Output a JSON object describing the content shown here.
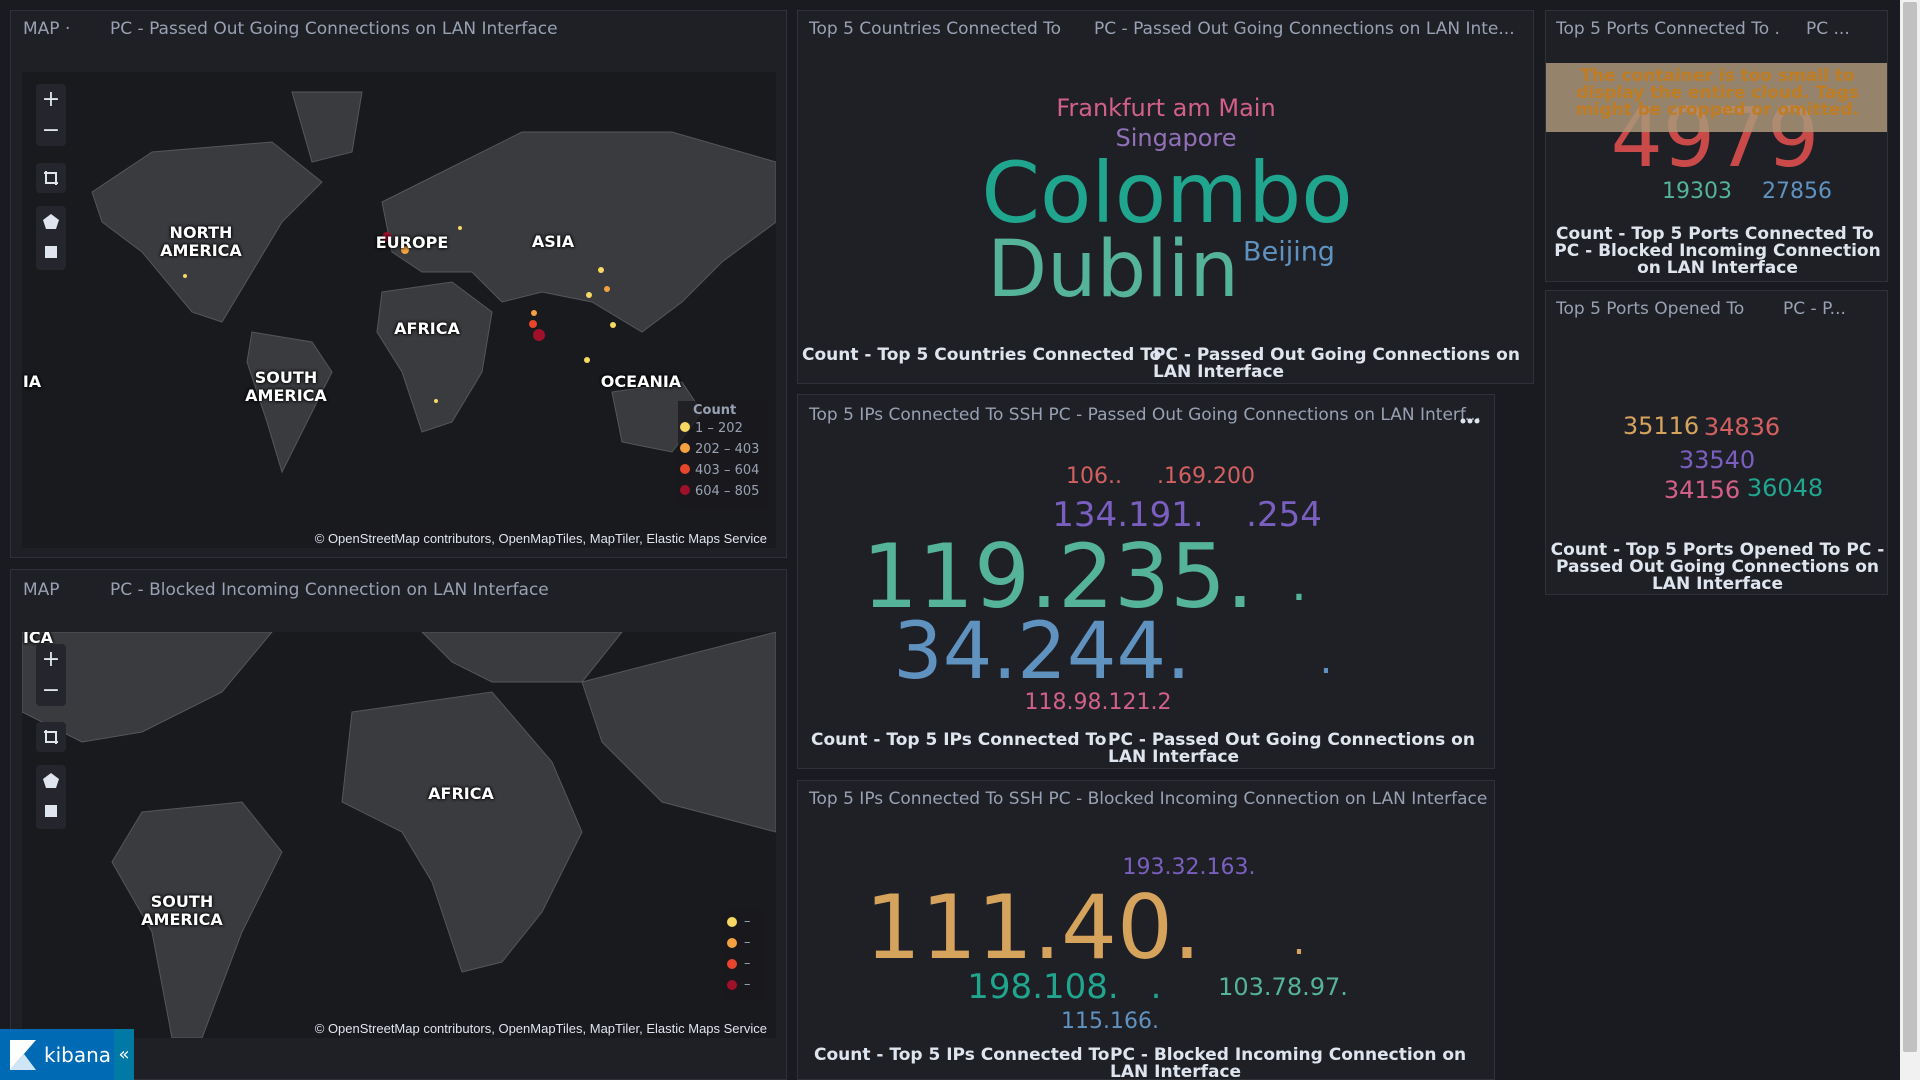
{
  "dashboard": {
    "map_passed": {
      "header": [
        "MAP ·",
        "PC - Passed Out Going Connections on LAN Interface"
      ],
      "labels": [
        "NORTH AMERICA",
        "EUROPE",
        "ASIA",
        "AFRICA",
        "SOUTH AMERICA",
        "OCEANIA",
        "IA"
      ],
      "legend": {
        "title": "Count",
        "items": [
          "1 – 202",
          "202 – 403",
          "403 – 604",
          "604 – 805"
        ]
      },
      "attribution": "© OpenStreetMap contributors, OpenMapTiles, MapTiler, Elastic Maps Service"
    },
    "map_blocked": {
      "header": [
        "MAP",
        "PC - Blocked Incoming Connection on LAN Interface"
      ],
      "labels": [
        "ICA",
        "AFRICA",
        "SOUTH AMERICA"
      ],
      "legend": {
        "items": [
          "–",
          "–",
          "–",
          "–"
        ]
      },
      "attribution": "© OpenStreetMap contributors, OpenMapTiles, MapTiler, Elastic Maps Service"
    },
    "map_controls": [
      "+",
      "−"
    ],
    "countries": {
      "header": [
        "Top 5 Countries Connected To",
        "PC - Passed Out Going Connections on LAN Inte..."
      ],
      "words": [
        "Frankfurt am Main",
        "Singapore",
        "Colombo",
        "Dublin",
        "Beijing"
      ],
      "footer": [
        "Count - Top 5 Countries Connected To",
        "PC - Passed Out Going Connections on LAN Interface"
      ]
    },
    "ips_passed": {
      "header": "Top 5 IPs Connected To SSH PC - Passed Out Going Connections on LAN Interf...",
      "words": [
        "106..",
        ".169.200",
        "134.191.",
        ".254",
        "119.235.",
        ".",
        "34.244.",
        ".",
        "118.98.121.2"
      ],
      "footer": [
        "Count - Top 5 IPs Connected To",
        "PC - Passed Out Going Connections on LAN Interface"
      ]
    },
    "ips_blocked": {
      "header": "Top 5 IPs Connected To SSH PC - Blocked Incoming Connection on LAN Interface",
      "words": [
        "193.32.163.",
        "111.40.",
        ".",
        "198.108.",
        ".",
        "103.78.97.",
        "115.166."
      ],
      "footer": [
        "Count - Top 5 IPs Connected To",
        "PC - Blocked Incoming Connection on LAN Interface"
      ]
    },
    "ports_connected": {
      "header": [
        "Top 5 Ports Connected To .",
        "PC ..."
      ],
      "warning": "The container is too small to display the entire cloud. Tags might be cropped or omitted.",
      "words": [
        "4979",
        "19303",
        "27856"
      ],
      "footer": [
        "Count - Top 5 Ports Connected To",
        "PC - Blocked Incoming Connection on LAN Interface"
      ]
    },
    "ports_opened": {
      "header": [
        "Top 5 Ports Opened To",
        "PC - P..."
      ],
      "words": [
        "35116",
        "34836",
        "33540",
        "34156",
        "36048"
      ],
      "footer": [
        "Count - Top 5 Ports Opened To",
        "PC - Passed Out Going Connections on LAN Interface"
      ]
    },
    "brand": "kibana"
  }
}
